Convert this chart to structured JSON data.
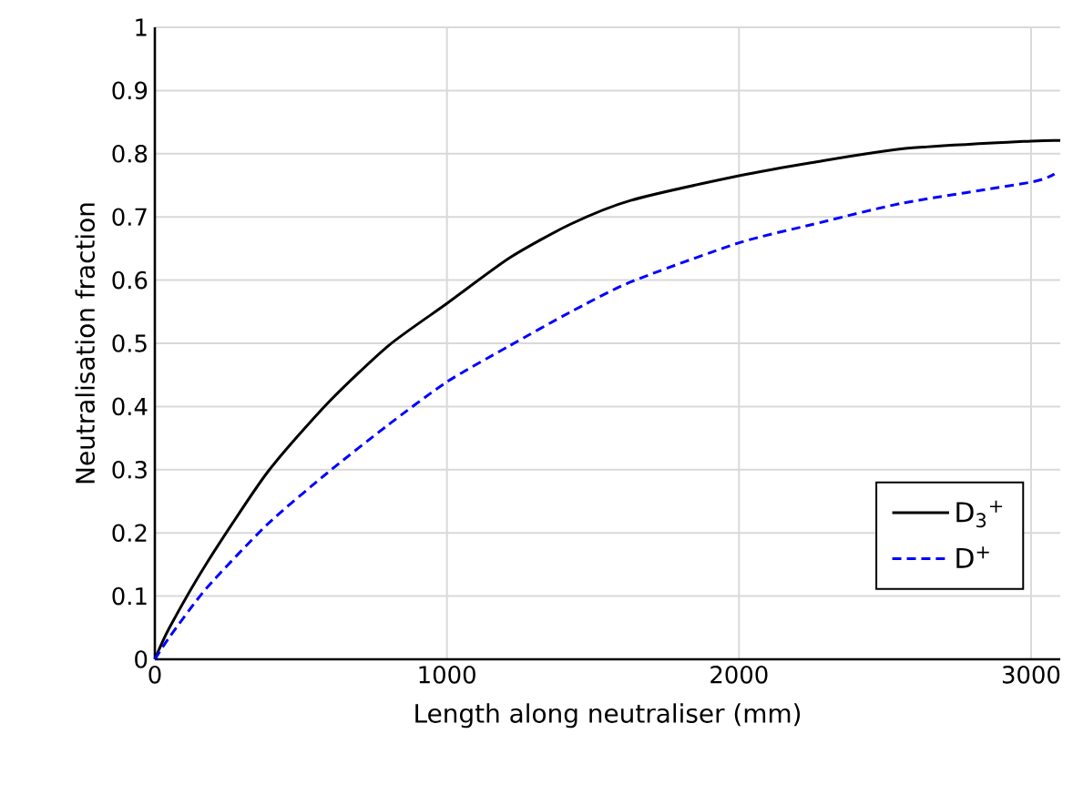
{
  "chart_data": {
    "type": "line",
    "xlabel": "Length along neutraliser (mm)",
    "ylabel": "Neutralisation fraction",
    "xlim": [
      0,
      3100
    ],
    "xticks": [
      0,
      1000,
      2000,
      3000
    ],
    "ylim": [
      0,
      1
    ],
    "yticks": [
      0,
      0.1,
      0.2,
      0.3,
      0.4,
      0.5,
      0.6,
      0.7,
      0.8,
      0.9,
      1
    ],
    "grid": true,
    "legend": "bottom right",
    "marker": "none",
    "series": [
      {
        "name": "D$_{3}$$^{+}$",
        "color": "#000000",
        "line_style": "solid",
        "x": [
          0,
          50,
          176,
          384,
          591,
          799,
          1000,
          1214,
          1421,
          1629,
          2000,
          2251,
          2562,
          3000,
          3100
        ],
        "values": [
          0,
          0.05,
          0.151,
          0.295,
          0.405,
          0.496,
          0.563,
          0.635,
          0.688,
          0.726,
          0.765,
          0.786,
          0.808,
          0.82,
          0.821
        ]
      },
      {
        "name": "D$^{+}$",
        "color": "#0000ff",
        "line_style": "dashed",
        "x": [
          0,
          50,
          176,
          384,
          591,
          799,
          1000,
          1214,
          1421,
          1629,
          2000,
          2251,
          2562,
          3000,
          3080
        ],
        "values": [
          0,
          0.035,
          0.112,
          0.213,
          0.295,
          0.371,
          0.439,
          0.496,
          0.549,
          0.597,
          0.659,
          0.688,
          0.722,
          0.755,
          0.768
        ]
      }
    ]
  }
}
